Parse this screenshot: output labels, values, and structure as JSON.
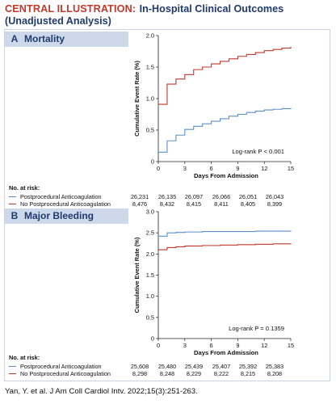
{
  "header": {
    "label_prefix": "CENTRAL ILLUSTRATION:",
    "title": "In-Hospital Clinical Outcomes",
    "subtitle": "(Unadjusted Analysis)"
  },
  "colors": {
    "series_blue": "#5b8fcf",
    "series_red": "#c0392b",
    "panel_bg": "#cdd9ea",
    "title_red": "#c0392b",
    "title_navy": "#1f3a6e"
  },
  "risk_header": "No. at risk:",
  "citation": "Yan, Y. et al. J Am Coll Cardiol Intv. 2022;15(3):251-263.",
  "panels": [
    {
      "letter": "A",
      "name": "Mortality",
      "ylabel": "Cumulative Event Rate (%)",
      "xlabel": "Days From Admission",
      "pvalue": "Log-rank P < 0.001",
      "yticks": [
        "0",
        "0.5",
        "1.0",
        "1.5",
        "2.0"
      ],
      "xticks": [
        "0",
        "3",
        "6",
        "9",
        "12",
        "15"
      ],
      "risk_rows": [
        {
          "label": "Postprocedural Anticoagulation",
          "values": [
            "26,231",
            "26,135",
            "26,097",
            "26,066",
            "26,051",
            "26,043"
          ]
        },
        {
          "label": "No Postprocedural Anticoagulation",
          "values": [
            "8,476",
            "8,432",
            "8,415",
            "8,411",
            "8,405",
            "8,399"
          ]
        }
      ]
    },
    {
      "letter": "B",
      "name": "Major Bleeding",
      "ylabel": "Cumulative Event Rate (%)",
      "xlabel": "Days From Admission",
      "pvalue": "Log-rank P = 0.1359",
      "yticks": [
        "0",
        "0.5",
        "1.0",
        "1.5",
        "2.0",
        "2.5",
        "3.0"
      ],
      "xticks": [
        "0",
        "3",
        "6",
        "9",
        "12",
        "15"
      ],
      "risk_rows": [
        {
          "label": "Postprocedural Anticoagulation",
          "values": [
            "25,608",
            "25,480",
            "25,439",
            "25,407",
            "25,392",
            "25,383"
          ]
        },
        {
          "label": "No Postprocedural Anticoagulation",
          "values": [
            "8,298",
            "8,248",
            "8,229",
            "8,222",
            "8,215",
            "8,208"
          ]
        }
      ]
    }
  ],
  "chart_data": [
    {
      "type": "line",
      "title": "Mortality",
      "xlabel": "Days From Admission",
      "ylabel": "Cumulative Event Rate (%)",
      "xlim": [
        0,
        15
      ],
      "ylim": [
        0,
        2.0
      ],
      "grid": false,
      "legend": "below plot (No. at risk table)",
      "annotation": "Log-rank P < 0.001",
      "series": [
        {
          "name": "Postprocedural Anticoagulation",
          "color": "#5b8fcf",
          "x": [
            0,
            1,
            2,
            3,
            4,
            5,
            6,
            7,
            8,
            9,
            10,
            11,
            12,
            13,
            14,
            15
          ],
          "y": [
            0.15,
            0.33,
            0.42,
            0.51,
            0.56,
            0.6,
            0.64,
            0.68,
            0.72,
            0.75,
            0.78,
            0.8,
            0.82,
            0.83,
            0.84,
            0.85
          ]
        },
        {
          "name": "No Postprocedural Anticoagulation",
          "color": "#c0392b",
          "x": [
            0,
            1,
            2,
            3,
            4,
            5,
            6,
            7,
            8,
            9,
            10,
            11,
            12,
            13,
            14,
            15
          ],
          "y": [
            0.91,
            1.23,
            1.31,
            1.38,
            1.46,
            1.5,
            1.55,
            1.59,
            1.63,
            1.67,
            1.7,
            1.73,
            1.76,
            1.78,
            1.8,
            1.82
          ]
        }
      ]
    },
    {
      "type": "line",
      "title": "Major Bleeding",
      "xlabel": "Days From Admission",
      "ylabel": "Cumulative Event Rate (%)",
      "xlim": [
        0,
        15
      ],
      "ylim": [
        0,
        3.0
      ],
      "grid": false,
      "legend": "below plot (No. at risk table)",
      "annotation": "Log-rank P = 0.1359",
      "series": [
        {
          "name": "Postprocedural Anticoagulation",
          "color": "#5b8fcf",
          "x": [
            0,
            1,
            2,
            3,
            5,
            7,
            9,
            11,
            13,
            15
          ],
          "y": [
            2.42,
            2.5,
            2.51,
            2.52,
            2.53,
            2.53,
            2.53,
            2.54,
            2.54,
            2.55
          ]
        },
        {
          "name": "No Postprocedural Anticoagulation",
          "color": "#c0392b",
          "x": [
            0,
            1,
            2,
            3,
            5,
            7,
            9,
            11,
            13,
            15
          ],
          "y": [
            2.1,
            2.15,
            2.17,
            2.19,
            2.2,
            2.21,
            2.22,
            2.23,
            2.24,
            2.25
          ]
        }
      ]
    }
  ]
}
